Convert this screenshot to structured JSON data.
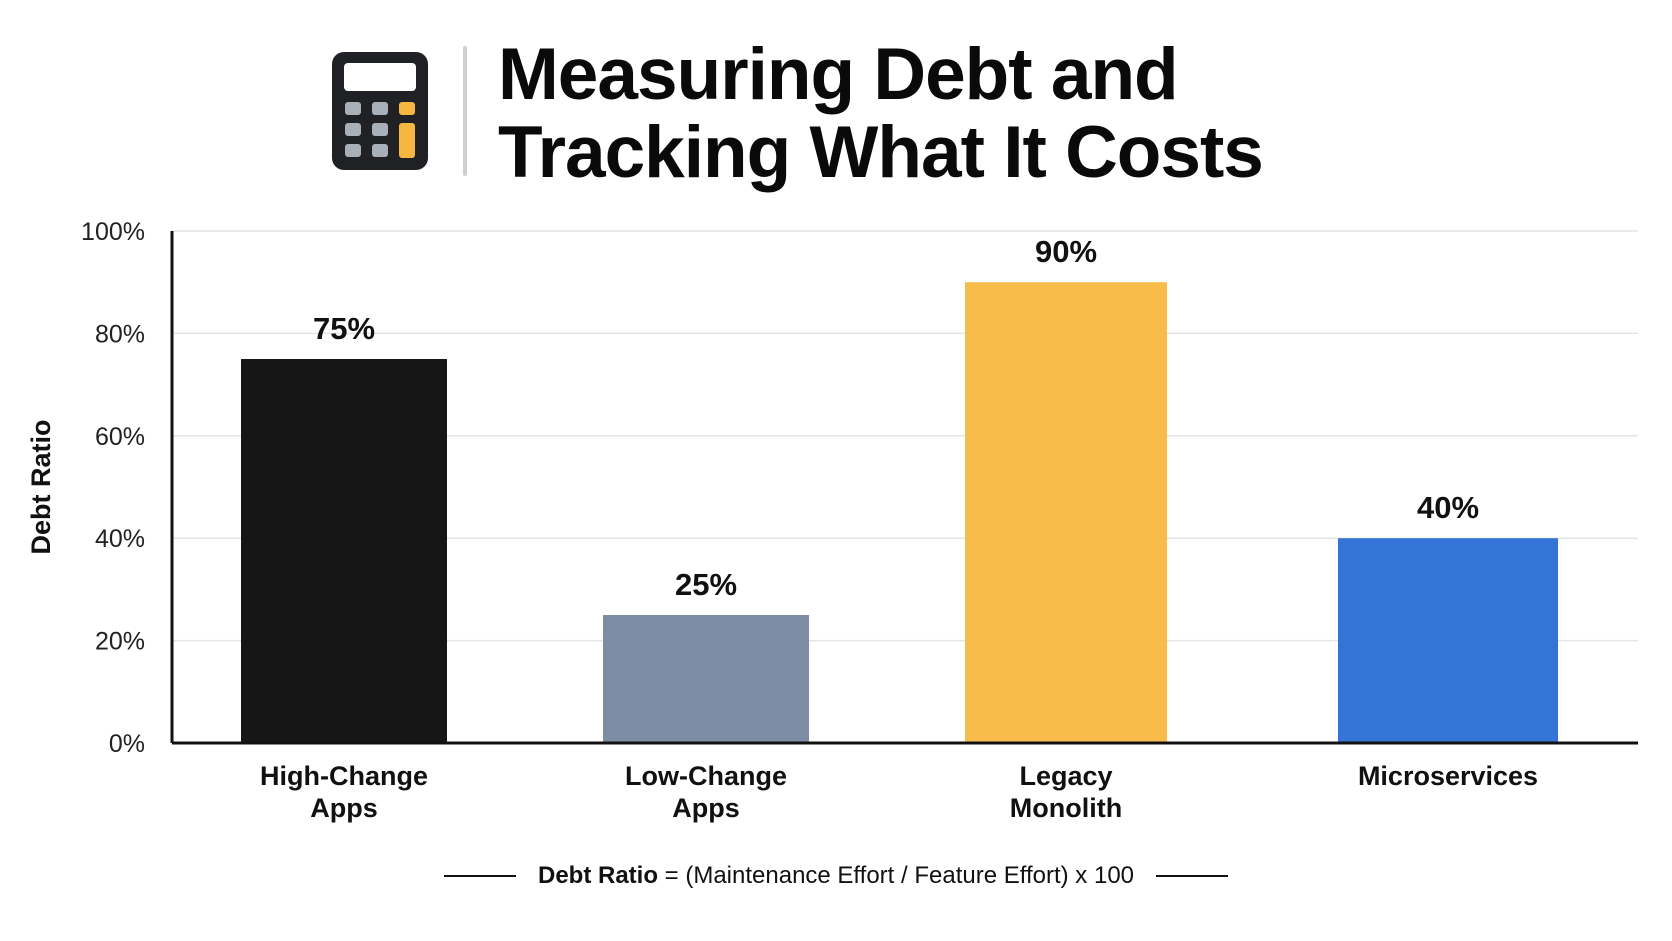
{
  "header": {
    "icon": "calculator-icon",
    "title_line1": "Measuring Debt and",
    "title_line2": "Tracking What It Costs"
  },
  "chart_data": {
    "type": "bar",
    "categories": [
      [
        "High-Change",
        "Apps"
      ],
      [
        "Low-Change",
        "Apps"
      ],
      [
        "Legacy",
        "Monolith"
      ],
      [
        "Microservices"
      ]
    ],
    "values": [
      75,
      25,
      90,
      40
    ],
    "value_labels": [
      "75%",
      "25%",
      "90%",
      "40%"
    ],
    "colors": [
      "#161616",
      "#7d8da3",
      "#f8bc4a",
      "#3374d6"
    ],
    "ylabel": "Debt Ratio",
    "ylim": [
      0,
      100
    ],
    "yticks": [
      0,
      20,
      40,
      60,
      80,
      100
    ],
    "ytick_labels": [
      "0%",
      "20%",
      "40%",
      "60%",
      "80%",
      "100%"
    ],
    "grid": true
  },
  "footer": {
    "formula_term": "Debt Ratio",
    "formula_rest": "= (Maintenance Effort / Feature Effort) x 100"
  }
}
